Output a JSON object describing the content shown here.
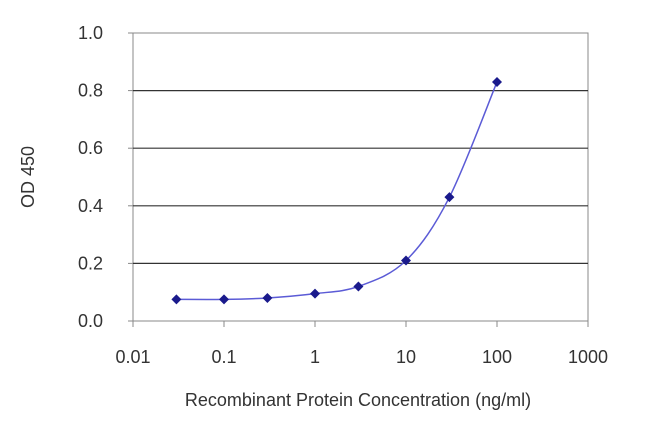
{
  "chart_data": {
    "type": "line",
    "title": "",
    "xlabel": "Recombinant Protein Concentration (ng/ml)",
    "ylabel": "OD 450",
    "x_scale": "log",
    "xlim": [
      0.01,
      1000
    ],
    "ylim": [
      0.0,
      1.0
    ],
    "x_ticks": [
      "0.01",
      "0.1",
      "1",
      "10",
      "100",
      "1000"
    ],
    "y_ticks": [
      "0.0",
      "0.2",
      "0.4",
      "0.6",
      "0.8",
      "1.0"
    ],
    "grid": "horizontal",
    "legend": "none",
    "series": [
      {
        "x": [
          0.03,
          0.1,
          0.3,
          1,
          3,
          10,
          30,
          100
        ],
        "y": [
          0.075,
          0.075,
          0.08,
          0.095,
          0.12,
          0.21,
          0.43,
          0.83
        ]
      }
    ],
    "colors": {
      "line": "#5b5bd6",
      "marker": "#1a1a8c",
      "grid": "#333333"
    }
  }
}
